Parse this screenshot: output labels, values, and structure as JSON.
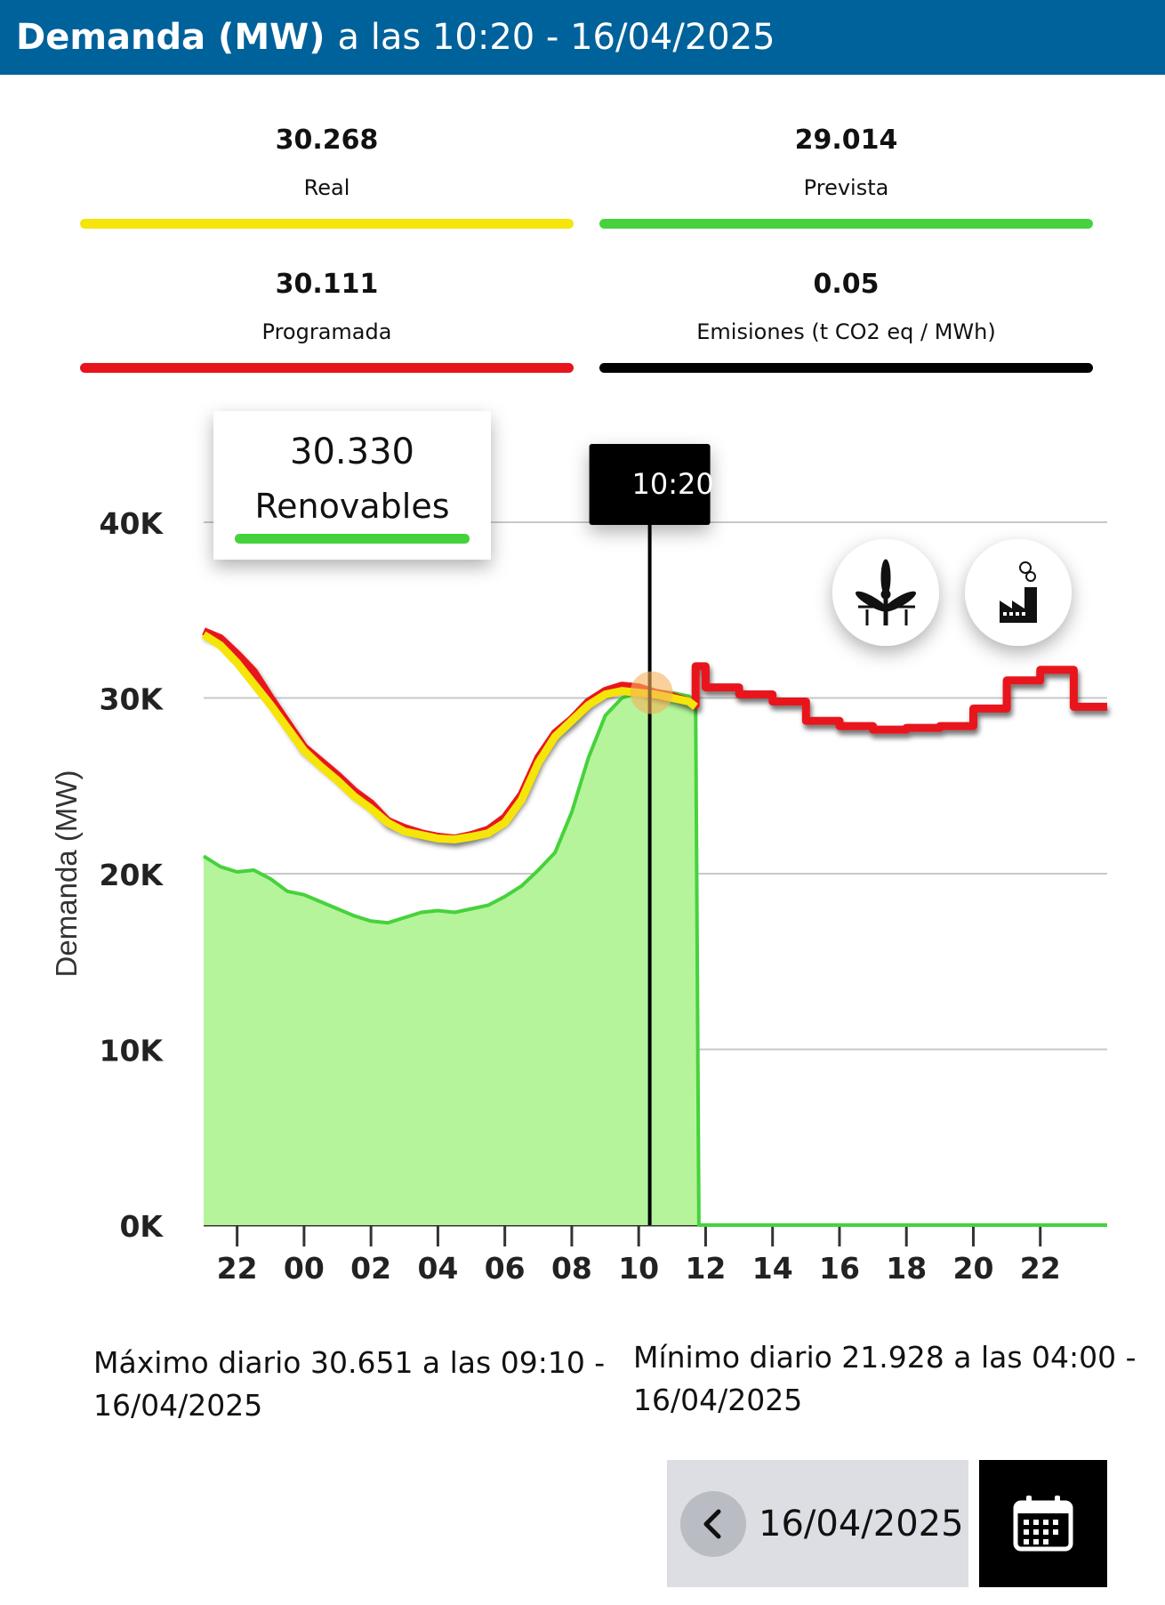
{
  "header": {
    "title_bold": "Demanda (MW)",
    "title_rest": "a las 10:20 - 16/04/2025"
  },
  "stats": {
    "real": {
      "value": "30.268",
      "label": "Real",
      "color": "#f5e50a"
    },
    "prevista": {
      "value": "29.014",
      "label": "Prevista",
      "color": "#46d23c"
    },
    "programada": {
      "value": "30.111",
      "label": "Programada",
      "color": "#e8141b"
    },
    "emisiones": {
      "value": "0.05",
      "label": "Emisiones (t CO2 eq / MWh)",
      "color": "#000000"
    }
  },
  "tooltip": {
    "value": "30.330",
    "label": "Renovables",
    "color": "#46d23c"
  },
  "cursor_label": "10:20",
  "icons": {
    "wind": "wind-turbine-icon",
    "factory": "factory-icon",
    "back": "chevron-left-icon",
    "calendar": "calendar-icon"
  },
  "chart_data": {
    "type": "line",
    "ylabel": "Demanda (MW)",
    "ylim": [
      0,
      40000
    ],
    "y_ticks": [
      "0K",
      "10K",
      "20K",
      "30K",
      "40K"
    ],
    "x_ticks": [
      "22",
      "00",
      "02",
      "04",
      "06",
      "08",
      "10",
      "12",
      "14",
      "16",
      "18",
      "20",
      "22"
    ],
    "x_range_hours": [
      21,
      48
    ],
    "cursor_x": 34.33,
    "series": [
      {
        "name": "Programada",
        "color": "#e8141b",
        "x": [
          21,
          21.5,
          22,
          22.5,
          23,
          23.5,
          24,
          24.5,
          25,
          25.5,
          26,
          26.5,
          27,
          27.5,
          28,
          28.5,
          29,
          29.5,
          30,
          30.5,
          31,
          31.5,
          32,
          32.5,
          33,
          33.5,
          34,
          34.5,
          35,
          35.5,
          35.7,
          35.7,
          36,
          36,
          37,
          37,
          38,
          38,
          39,
          39,
          40,
          40,
          41,
          41,
          42,
          42,
          43,
          43,
          44,
          44,
          45,
          45,
          46,
          46,
          47,
          47,
          48
        ],
        "y": [
          33800,
          33400,
          32500,
          31500,
          30000,
          28600,
          27200,
          26400,
          25600,
          24700,
          24000,
          23000,
          22600,
          22300,
          22100,
          22000,
          22200,
          22500,
          23200,
          24500,
          26600,
          28000,
          28800,
          29800,
          30400,
          30700,
          30600,
          30300,
          30100,
          29800,
          29600,
          31800,
          31800,
          30600,
          30600,
          30200,
          30200,
          29800,
          29800,
          28700,
          28700,
          28400,
          28400,
          28200,
          28200,
          28300,
          28300,
          28400,
          28400,
          29400,
          29400,
          31000,
          31000,
          31600,
          31600,
          29500,
          29500
        ]
      },
      {
        "name": "Real",
        "color": "#f5e50a",
        "x": [
          21,
          21.5,
          22,
          22.5,
          23,
          23.5,
          24,
          24.5,
          25,
          25.5,
          26,
          26.5,
          27,
          27.5,
          28,
          28.5,
          29,
          29.5,
          30,
          30.5,
          31,
          31.5,
          32,
          32.5,
          33,
          33.5,
          34,
          34.5,
          35,
          35.5,
          35.7
        ],
        "y": [
          33600,
          33000,
          32000,
          30800,
          29600,
          28300,
          27000,
          26100,
          25300,
          24400,
          23700,
          22900,
          22400,
          22200,
          22000,
          21950,
          22100,
          22300,
          22900,
          24200,
          26300,
          27800,
          28700,
          29600,
          30200,
          30400,
          30300,
          30200,
          30000,
          29800,
          29500
        ]
      },
      {
        "name": "Renovables",
        "color": "#46d23c",
        "x": [
          21,
          21.5,
          22,
          22.5,
          23,
          23.5,
          24,
          24.5,
          25,
          25.5,
          26,
          26.5,
          27,
          27.5,
          28,
          28.5,
          29,
          29.5,
          30,
          30.5,
          31,
          31.5,
          32,
          32.5,
          33,
          33.5,
          34,
          34.5,
          35,
          35.5,
          35.7,
          35.8,
          48
        ],
        "y": [
          21000,
          20400,
          20100,
          20200,
          19700,
          19000,
          18800,
          18400,
          18000,
          17600,
          17300,
          17200,
          17500,
          17800,
          17900,
          17800,
          18000,
          18200,
          18700,
          19300,
          20200,
          21200,
          23500,
          26600,
          29000,
          30000,
          30300,
          30400,
          30300,
          30100,
          29800,
          0,
          0
        ]
      }
    ]
  },
  "extremes": {
    "max_text": "Máximo diario 30.651 a las 09:10 - 16/04/2025",
    "min_text": "Mínimo diario 21.928 a las 04:00 - 16/04/2025"
  },
  "date_selector": {
    "date": "16/04/2025"
  }
}
